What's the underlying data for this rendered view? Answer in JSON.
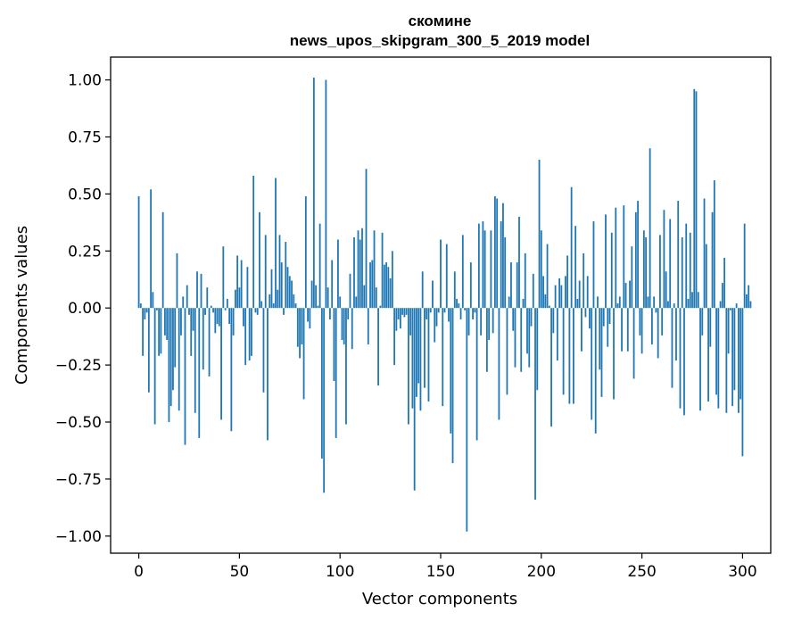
{
  "chart_data": {
    "type": "bar",
    "title_line1": "скомине",
    "title_line2": "news_upos_skipgram_300_5_2019 model",
    "xlabel": "Vector components",
    "ylabel": "Components values",
    "xlim": [
      -14,
      314
    ],
    "ylim": [
      -1.075,
      1.1
    ],
    "xticks": [
      0,
      50,
      100,
      150,
      200,
      250,
      300
    ],
    "xtick_labels": [
      "0",
      "50",
      "100",
      "150",
      "200",
      "250",
      "300"
    ],
    "yticks": [
      1.0,
      0.75,
      0.5,
      0.25,
      0.0,
      -0.25,
      -0.5,
      -0.75,
      -1.0
    ],
    "ytick_labels": [
      "1.00",
      "0.75",
      "0.50",
      "0.25",
      "0.00",
      "−0.25",
      "−0.50",
      "−0.75",
      "−1.00"
    ],
    "bar_color": "#1f77b4",
    "values": [
      0.49,
      0.02,
      -0.21,
      -0.05,
      -0.02,
      -0.37,
      0.52,
      0.07,
      -0.51,
      -0.01,
      -0.21,
      -0.2,
      0.42,
      -0.12,
      -0.14,
      -0.5,
      -0.43,
      -0.36,
      -0.26,
      0.24,
      -0.45,
      -0.12,
      0.05,
      -0.6,
      0.1,
      -0.03,
      -0.21,
      -0.1,
      -0.46,
      0.16,
      -0.57,
      0.15,
      -0.27,
      -0.03,
      0.09,
      -0.3,
      0.01,
      -0.02,
      -0.11,
      -0.07,
      -0.08,
      -0.49,
      0.27,
      -0.01,
      0.04,
      -0.07,
      -0.54,
      -0.12,
      0.08,
      0.23,
      0.09,
      0.21,
      -0.08,
      -0.25,
      0.18,
      -0.23,
      -0.21,
      0.58,
      -0.02,
      -0.03,
      0.42,
      0.03,
      -0.37,
      0.32,
      -0.58,
      0.06,
      0.17,
      0.02,
      0.57,
      0.08,
      0.32,
      0.2,
      -0.03,
      0.29,
      0.18,
      0.14,
      0.12,
      0.06,
      0.02,
      -0.17,
      -0.22,
      -0.16,
      -0.4,
      0.49,
      -0.06,
      -0.09,
      0.12,
      1.01,
      0.1,
      0.01,
      0.37,
      -0.66,
      -0.81,
      1.0,
      0.09,
      -0.05,
      0.21,
      -0.32,
      -0.57,
      0.3,
      0.05,
      -0.14,
      -0.16,
      -0.51,
      -0.05,
      0.15,
      -0.18,
      0.31,
      0.05,
      0.34,
      0.3,
      0.35,
      0.1,
      0.61,
      -0.16,
      0.2,
      0.21,
      0.34,
      0.09,
      -0.34,
      0.01,
      0.33,
      0.19,
      0.2,
      0.18,
      0.13,
      0.25,
      -0.25,
      -0.1,
      -0.05,
      -0.09,
      -0.03,
      -0.04,
      -0.03,
      -0.51,
      -0.12,
      -0.44,
      -0.8,
      -0.39,
      -0.33,
      -0.45,
      0.16,
      -0.35,
      -0.05,
      -0.41,
      -0.02,
      0.12,
      -0.15,
      -0.08,
      -0.02,
      0.3,
      -0.43,
      -0.02,
      0.28,
      -0.06,
      -0.55,
      -0.68,
      0.16,
      0.04,
      0.02,
      -0.05,
      0.32,
      -0.01,
      -0.98,
      -0.12,
      0.2,
      -0.05,
      -0.02,
      -0.58,
      0.37,
      -0.12,
      0.38,
      0.34,
      -0.28,
      -0.14,
      0.34,
      -0.11,
      0.49,
      0.48,
      -0.49,
      0.38,
      0.46,
      0.31,
      -0.38,
      0.05,
      0.2,
      -0.1,
      -0.26,
      0.2,
      0.4,
      -0.28,
      0.04,
      0.24,
      -0.2,
      -0.26,
      -0.08,
      0.15,
      -0.84,
      -0.36,
      0.65,
      0.34,
      0.14,
      0.06,
      0.28,
      0.01,
      -0.52,
      -0.11,
      0.1,
      -0.23,
      0.13,
      0.1,
      -0.38,
      0.14,
      0.23,
      -0.42,
      0.53,
      -0.42,
      0.36,
      0.04,
      0.12,
      -0.19,
      0.24,
      -0.04,
      0.14,
      -0.09,
      -0.49,
      0.38,
      -0.55,
      0.05,
      -0.27,
      -0.39,
      -0.08,
      0.41,
      -0.17,
      -0.07,
      0.33,
      -0.4,
      0.44,
      0.02,
      0.05,
      -0.19,
      0.45,
      0.11,
      -0.19,
      0.12,
      0.27,
      -0.31,
      0.42,
      0.47,
      -0.12,
      -0.2,
      0.34,
      0.31,
      0.05,
      0.7,
      -0.16,
      0.05,
      -0.02,
      -0.22,
      0.32,
      -0.12,
      0.43,
      0.16,
      0.03,
      0.39,
      -0.35,
      0.02,
      -0.23,
      0.47,
      -0.44,
      0.31,
      -0.47,
      0.37,
      0.04,
      0.33,
      0.07,
      0.96,
      0.95,
      0.07,
      -0.45,
      -0.12,
      0.48,
      0.28,
      -0.41,
      -0.17,
      0.42,
      0.56,
      -0.38,
      -0.44,
      0.03,
      0.11,
      0.22,
      -0.46,
      -0.2,
      -0.01,
      -0.43,
      -0.36,
      0.02,
      -0.46,
      -0.4,
      -0.65,
      0.37,
      0.06,
      0.1,
      0.03
    ]
  }
}
